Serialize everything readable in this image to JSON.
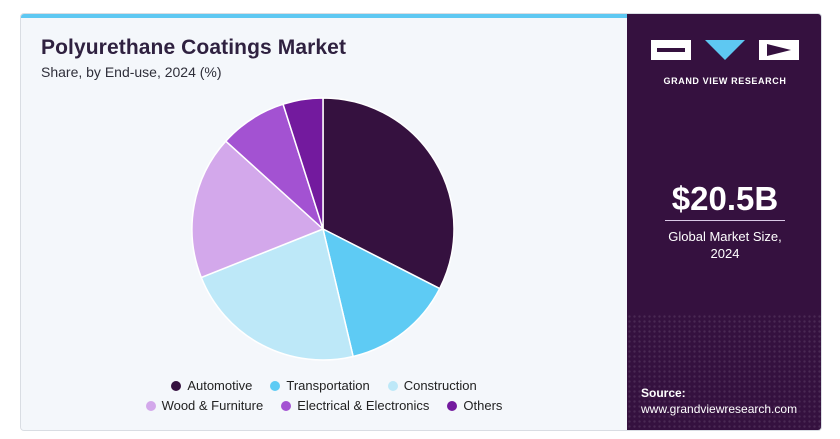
{
  "header": {
    "title": "Polyurethane Coatings Market",
    "subtitle": "Share, by End-use, 2024 (%)"
  },
  "brand": {
    "logo_text": "GRAND VIEW RESEARCH",
    "market_value": "$20.5B",
    "market_label_line1": "Global Market Size,",
    "market_label_line2": "2024",
    "source_label": "Source:",
    "source_url": "www.grandviewresearch.com",
    "panel_color": "#35113f",
    "accent_color": "#5ec8f2"
  },
  "chart_data": {
    "type": "pie",
    "title": "Polyurethane Coatings Market",
    "subtitle": "Share, by End-use, 2024 (%)",
    "start_angle_deg": 0,
    "direction": "clockwise",
    "legend_position": "bottom",
    "series": [
      {
        "name": "Automotive",
        "value": 33,
        "color": "#35113f"
      },
      {
        "name": "Transportation",
        "value": 14,
        "color": "#5ecbf4"
      },
      {
        "name": "Construction",
        "value": 23,
        "color": "#bde8f8"
      },
      {
        "name": "Wood & Furniture",
        "value": 18,
        "color": "#d3a8eb"
      },
      {
        "name": "Electrical & Electronics",
        "value": 8.5,
        "color": "#a352d2"
      },
      {
        "name": "Others",
        "value": 5,
        "color": "#731a9e"
      }
    ]
  }
}
